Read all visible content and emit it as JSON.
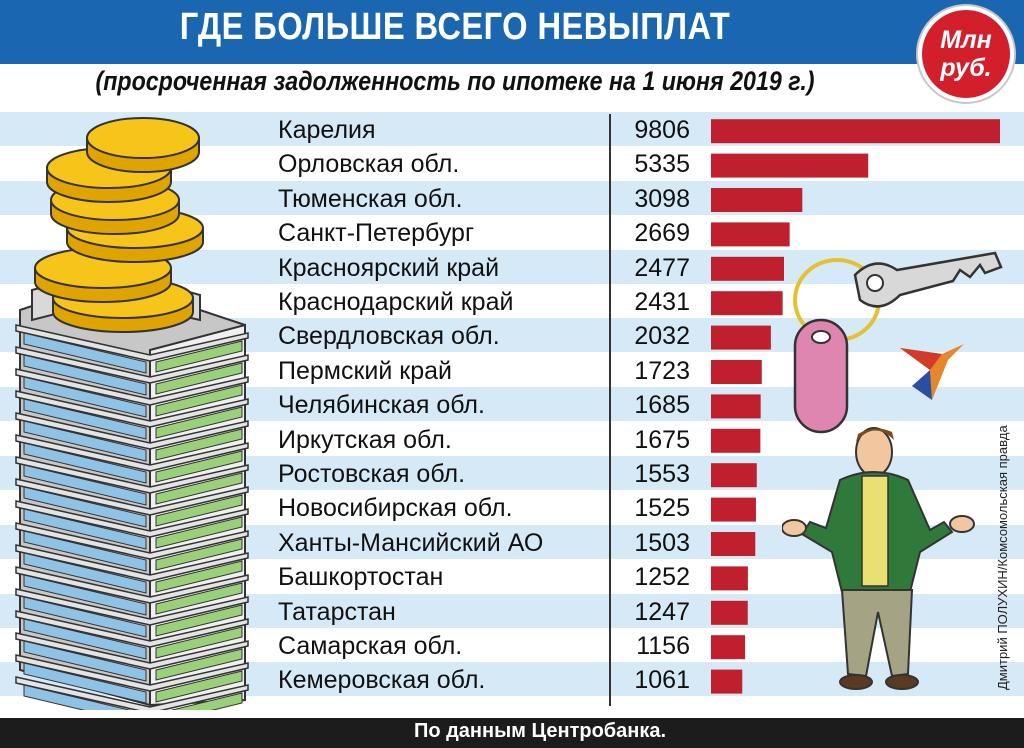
{
  "header": {
    "title": "ГДЕ БОЛЬШЕ ВСЕГО НЕВЫПЛАТ",
    "subtitle": "(просроченная задолженность по ипотеке на 1 июня 2019 г.)",
    "unit_line1": "Млн",
    "unit_line2": "руб."
  },
  "footer": {
    "source": "По данным Центробанка.",
    "credit": "Дмитрий ПОЛУХИН/Комсомольская правда"
  },
  "colors": {
    "header_bg": "#1a66b0",
    "bar": "#c0202d",
    "badge": "#d31f2b",
    "stripe_light": "#d6e9f7",
    "stripe_white": "#ffffff",
    "footer_bg": "#1c1c1c"
  },
  "illustrations": [
    "coin-stack-icon",
    "apartment-building-icon",
    "house-key-icon",
    "bird-logo-icon",
    "shrugging-man-icon"
  ],
  "chart_data": {
    "type": "bar",
    "orientation": "horizontal",
    "title": "ГДЕ БОЛЬШЕ ВСЕГО НЕВЫПЛАТ",
    "subtitle": "(просроченная задолженность по ипотеке на 1 июня 2019 г.)",
    "unit": "Млн руб.",
    "grid": false,
    "categories": [
      "Карелия",
      "Орловская обл.",
      "Тюменская обл.",
      "Санкт-Петербург",
      "Красноярский край",
      "Краснодарский край",
      "Свердловская обл.",
      "Пермский край",
      "Челябинская обл.",
      "Иркутская обл.",
      "Ростовская обл.",
      "Новосибирская обл.",
      "Ханты-Мансийский АО",
      "Башкортостан",
      "Татарстан",
      "Самарская обл.",
      "Кемеровская обл."
    ],
    "values": [
      9806,
      5335,
      3098,
      2669,
      2477,
      2431,
      2032,
      1723,
      1685,
      1675,
      1553,
      1525,
      1503,
      1252,
      1247,
      1156,
      1061
    ],
    "value_labels": [
      "9806",
      "5335",
      "3098",
      "2669",
      "2477",
      "2431",
      "2032",
      "1723",
      "1685",
      "1675",
      "1553",
      "1525",
      "1503",
      "1252",
      "1247",
      "1156",
      "1061"
    ],
    "xlim": [
      0,
      9806
    ]
  }
}
